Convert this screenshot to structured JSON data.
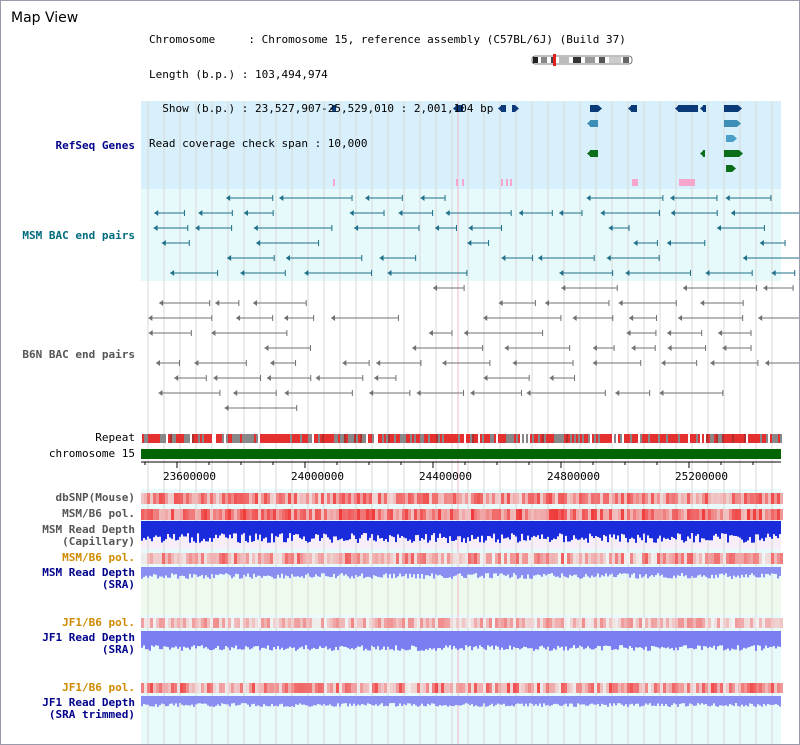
{
  "title": "Map View",
  "info": {
    "line1": "Chromosome     : Chromosome 15, reference assembly (C57BL/6J) (Build 37)",
    "line2": "Length (b.p.) : 103,494,974",
    "line3": "  Show (b.p.) : 23,527,907-25,529,010 : 2,001,104 bp",
    "line4": "Read coverage check span : 10,000"
  },
  "tracks": {
    "refseq": "RefSeq Genes",
    "msm_bac": "MSM BAC end pairs",
    "b6n_bac": "B6N BAC end pairs",
    "repeat": "Repeat",
    "chromosome": "chromosome 15",
    "dbsnp": "dbSNP(Mouse)",
    "msm_b6_pol": "MSM/B6 pol.",
    "msm_read_depth_cap_1": "MSM Read Depth",
    "msm_read_depth_cap_2": "(Capillary)",
    "msm_b6_pol_2": "MSM/B6 pol.",
    "msm_read_depth_sra_1": "MSM Read Depth",
    "msm_read_depth_sra_2": "(SRA)",
    "jf1_b6_pol": "JF1/B6 pol.",
    "jf1_read_depth_sra_1": "JF1 Read Depth",
    "jf1_read_depth_sra_2": "(SRA)",
    "jf1_b6_pol_2": "JF1/B6 pol.",
    "jf1_read_depth_trim_1": "JF1 Read Depth",
    "jf1_read_depth_trim_2": "(SRA trimmed)"
  },
  "axis": {
    "ticks": [
      "23600000",
      "24000000",
      "24400000",
      "24800000",
      "25200000"
    ]
  },
  "colors": {
    "refseq_bg": "#d8f0fc",
    "msm_bg": "#e6fafc",
    "coverage_bg": "#e8fafa",
    "chromosome_bar": "#006400",
    "repeat_red": "#e53030",
    "repeat_gray": "#888888",
    "depth_blue": "#1a2bdc",
    "depth_light": "#8a8ef0"
  }
}
